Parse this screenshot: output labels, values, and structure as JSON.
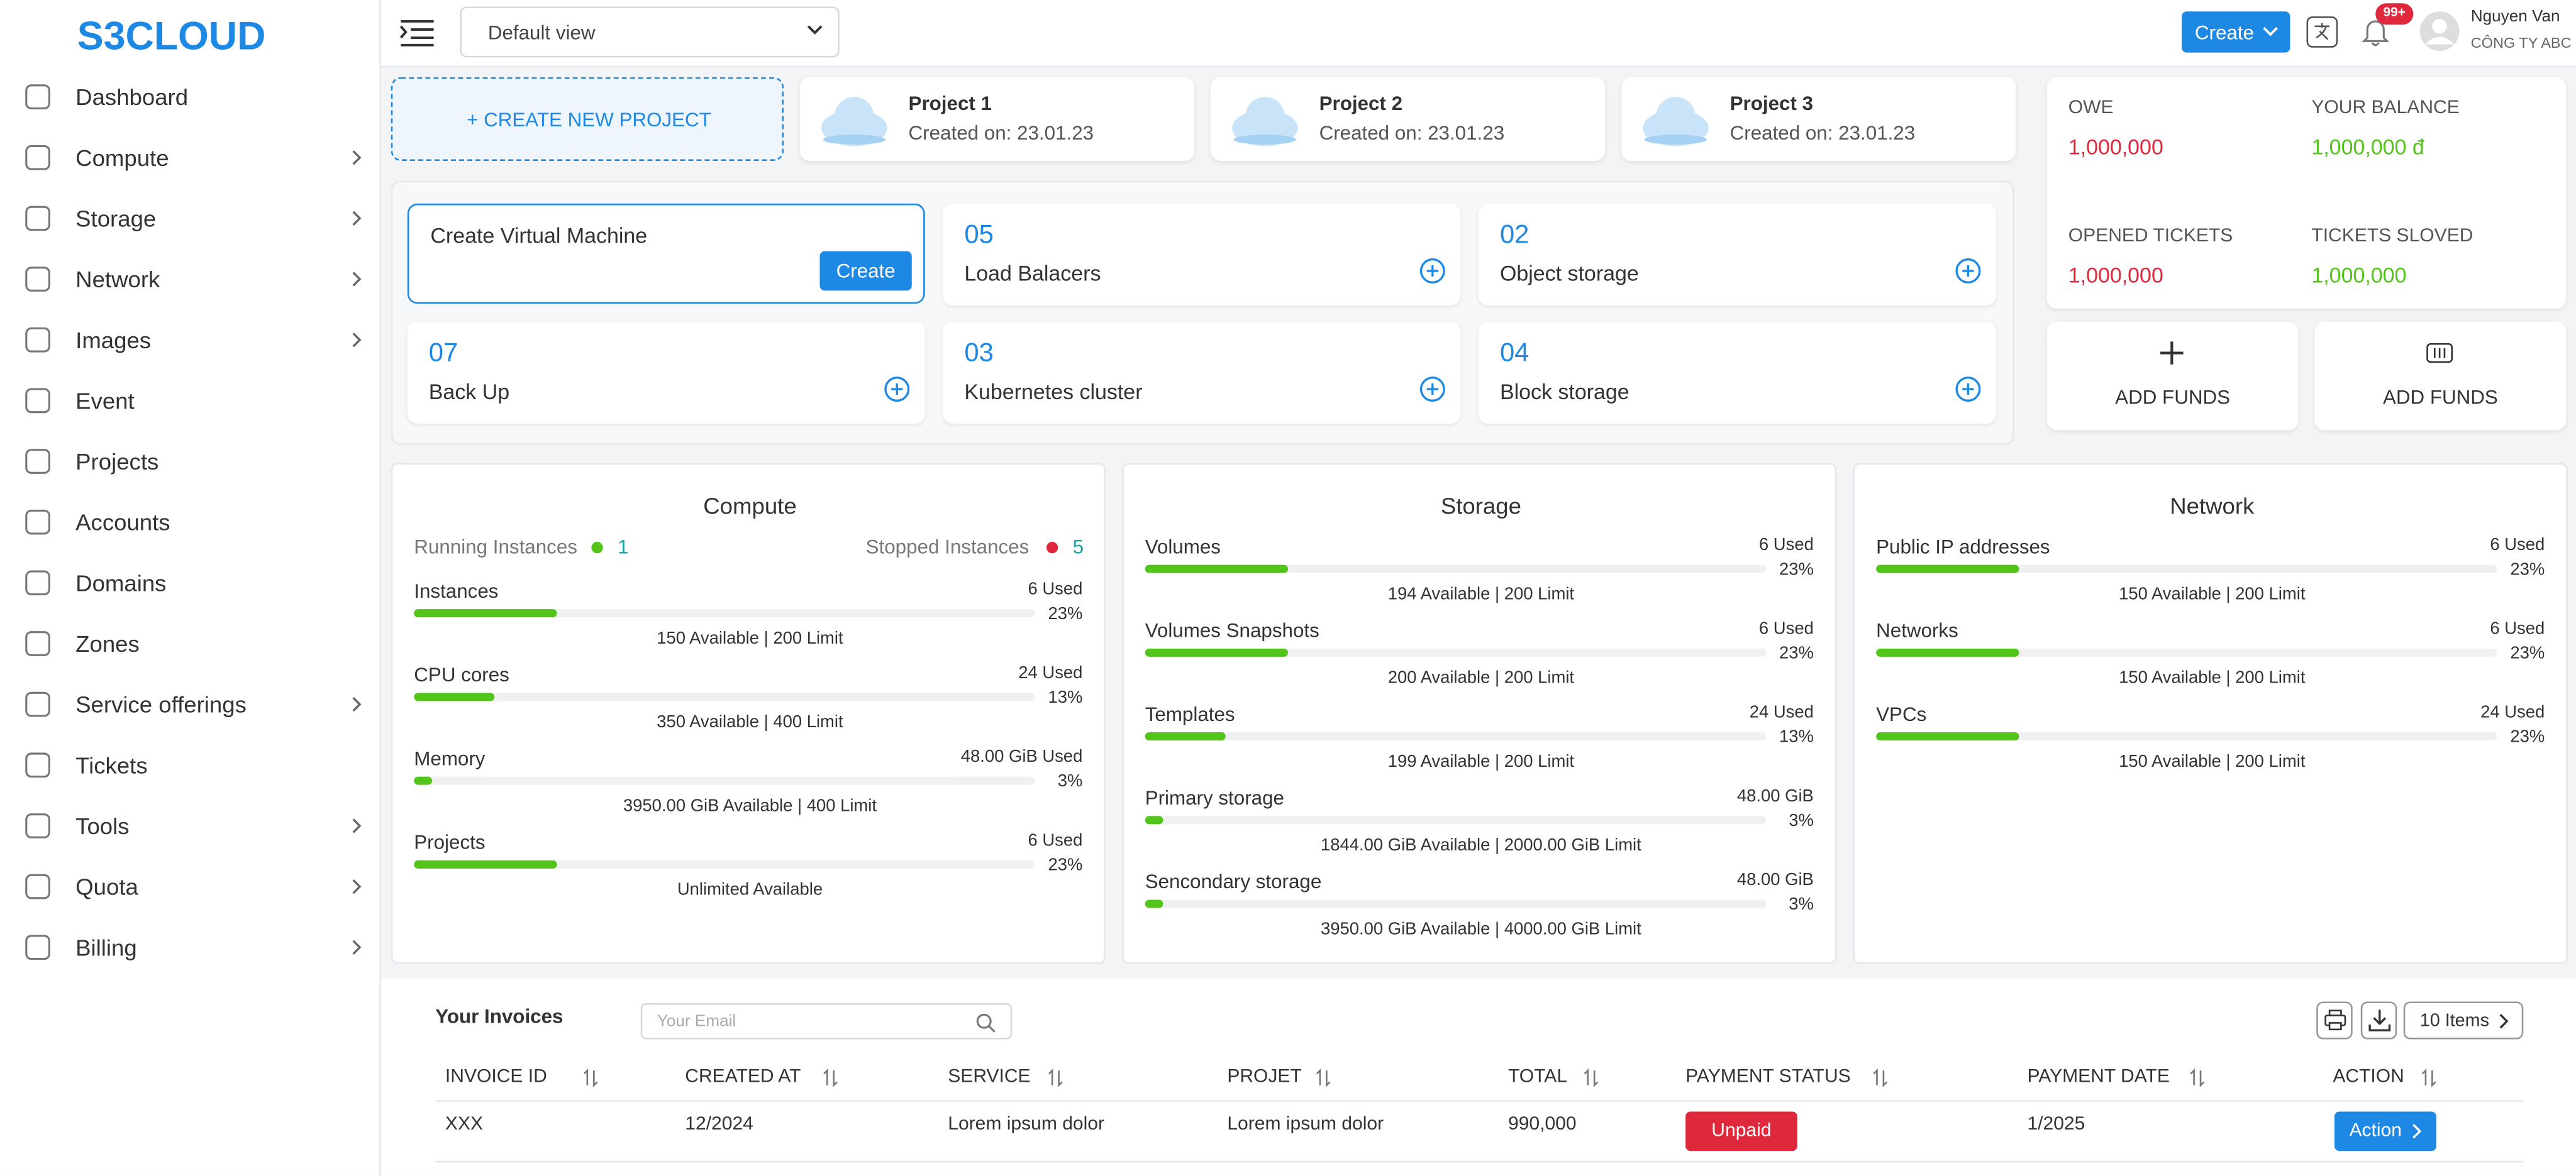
{
  "sidebar": {
    "logo": "S3CLOUD",
    "items": [
      {
        "label": "Dashboard",
        "submenu": false
      },
      {
        "label": "Compute",
        "submenu": true
      },
      {
        "label": "Storage",
        "submenu": true
      },
      {
        "label": "Network",
        "submenu": true
      },
      {
        "label": "Images",
        "submenu": true
      },
      {
        "label": "Event",
        "submenu": false
      },
      {
        "label": "Projects",
        "submenu": false
      },
      {
        "label": "Accounts",
        "submenu": false
      },
      {
        "label": "Domains",
        "submenu": false
      },
      {
        "label": "Zones",
        "submenu": false
      },
      {
        "label": "Service offerings",
        "submenu": true
      },
      {
        "label": "Tickets",
        "submenu": false
      },
      {
        "label": "Tools",
        "submenu": true
      },
      {
        "label": "Quota",
        "submenu": true
      },
      {
        "label": "Billing",
        "submenu": true
      }
    ]
  },
  "topbar": {
    "view": "Default view",
    "create": "Create",
    "badge": "99+",
    "user_name": "Nguyen Van",
    "company": "CÔNG TY ABC"
  },
  "projects": {
    "new": "+ CREATE NEW PROJECT",
    "items": [
      {
        "name": "Project 1",
        "created": "Created on: 23.01.23"
      },
      {
        "name": "Project 2",
        "created": "Created on: 23.01.23"
      },
      {
        "name": "Project 3",
        "created": "Created on: 23.01.23"
      }
    ]
  },
  "resources": {
    "create": {
      "title": "Create Virtual Machine",
      "button": "Create"
    },
    "items": [
      {
        "count": "05",
        "label": "Load Balacers"
      },
      {
        "count": "02",
        "label": "Object storage"
      },
      {
        "count": "07",
        "label": "Back Up"
      },
      {
        "count": "03",
        "label": "Kubernetes cluster"
      },
      {
        "count": "04",
        "label": "Block storage"
      }
    ]
  },
  "balance": {
    "items": [
      {
        "label": "OWE",
        "value": "1,000,000",
        "color": "#e0283c"
      },
      {
        "label": "YOUR BALANCE",
        "value": "1,000,000 đ",
        "color": "#52c41a"
      },
      {
        "label": "OPENED TICKETS",
        "value": "1,000,000",
        "color": "#e0283c"
      },
      {
        "label": "TICKETS SLOVED",
        "value": "1,000,000",
        "color": "#52c41a"
      }
    ],
    "funds": [
      {
        "label": "ADD FUNDS"
      },
      {
        "label": "ADD FUNDS"
      }
    ]
  },
  "panels": [
    {
      "title": "Compute",
      "running_label": "Running Instances",
      "running": 1,
      "stopped_label": "Stopped Instances",
      "stopped": 5,
      "rows": [
        {
          "name": "Instances",
          "used": "6 Used",
          "percent": 23,
          "percent_label": "23%",
          "footer": "150 Available | 200 Limit"
        },
        {
          "name": "CPU cores",
          "used": "24 Used",
          "percent": 13,
          "percent_label": "13%",
          "footer": "350 Available | 400 Limit"
        },
        {
          "name": "Memory",
          "used": "48.00 GiB Used",
          "percent": 3,
          "percent_label": "3%",
          "footer": "3950.00 GiB Available | 400 Limit"
        },
        {
          "name": "Projects",
          "used": "6 Used",
          "percent": 23,
          "percent_label": "23%",
          "footer": "Unlimited Available"
        }
      ]
    },
    {
      "title": "Storage",
      "rows": [
        {
          "name": "Volumes",
          "used": "6 Used",
          "percent": 23,
          "percent_label": "23%",
          "footer": "194 Available | 200 Limit"
        },
        {
          "name": "Volumes Snapshots",
          "used": "6 Used",
          "percent": 23,
          "percent_label": "23%",
          "footer": "200 Available | 200 Limit"
        },
        {
          "name": "Templates",
          "used": "24 Used",
          "percent": 13,
          "percent_label": "13%",
          "footer": "199 Available | 200 Limit"
        },
        {
          "name": "Primary storage",
          "used": "48.00 GiB",
          "percent": 3,
          "percent_label": "3%",
          "footer": "1844.00 GiB Available | 2000.00 GiB Limit"
        },
        {
          "name": "Sencondary storage",
          "used": "48.00 GiB",
          "percent": 3,
          "percent_label": "3%",
          "footer": "3950.00 GiB Available | 4000.00 GiB Limit"
        }
      ]
    },
    {
      "title": "Network",
      "rows": [
        {
          "name": "Public IP addresses",
          "used": "6 Used",
          "percent": 23,
          "percent_label": "23%",
          "footer": "150 Available | 200 Limit"
        },
        {
          "name": "Networks",
          "used": "6 Used",
          "percent": 23,
          "percent_label": "23%",
          "footer": "150 Available | 200 Limit"
        },
        {
          "name": "VPCs",
          "used": "24 Used",
          "percent": 23,
          "percent_label": "23%",
          "footer": "150 Available | 200 Limit"
        }
      ]
    }
  ],
  "invoices": {
    "title": "Your Invoices",
    "search": "Your Email",
    "page_size": "10 Items",
    "columns": [
      "INVOICE ID",
      "CREATED AT",
      "SERVICE",
      "PROJET",
      "TOTAL",
      "PAYMENT STATUS",
      "PAYMENT DATE",
      "ACTION"
    ],
    "rows": [
      [
        "XXX",
        "12/2024",
        "Lorem ipsum dolor",
        "Lorem ipsum dolor",
        "990,000",
        "Unpaid",
        "1/2025",
        "Action"
      ]
    ]
  }
}
